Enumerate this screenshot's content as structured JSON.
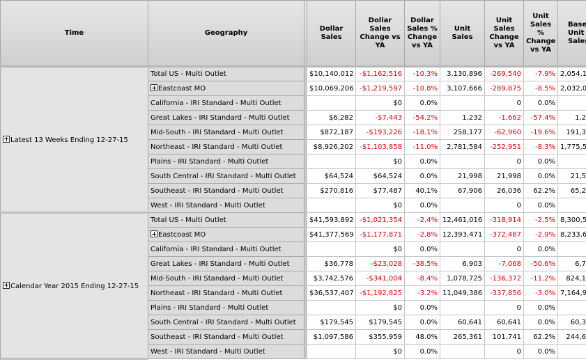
{
  "table": {
    "columns": [
      "Time",
      "Geography",
      "Dollar Sales",
      "Dollar Sales Change vs YA",
      "Dollar Sales % Change vs YA",
      "Unit Sales",
      "Unit Sales Change vs YA",
      "Unit Sales % Change vs YA",
      "Base Unit Sales"
    ],
    "groups": [
      {
        "time": "Latest 13 Weeks Ending 12-27-15",
        "expandable": true,
        "rows": [
          {
            "geography": "Total US - Multi Outlet",
            "expandable": false,
            "values": [
              "$10,140,012",
              "-$1,162,516",
              "-10.3%",
              "3,130,896",
              "-269,540",
              "-7.9%",
              "2,054,1"
            ]
          },
          {
            "geography": "Eastcoast MO",
            "expandable": true,
            "values": [
              "$10,069,206",
              "-$1,219,597",
              "-10.8%",
              "3,107,666",
              "-289,875",
              "-8.5%",
              "2,032,0"
            ]
          },
          {
            "geography": "California - IRI Standard - Multi Outlet",
            "expandable": false,
            "values": [
              null,
              "$0",
              "0.0%",
              null,
              "0",
              "0.0%",
              null
            ]
          },
          {
            "geography": "Great Lakes - IRI Standard - Multi Outlet",
            "expandable": false,
            "values": [
              "$6,282",
              "-$7,443",
              "-54.2%",
              "1,232",
              "-1,662",
              "-57.4%",
              "1,2"
            ]
          },
          {
            "geography": "Mid-South - IRI Standard - Multi Outlet",
            "expandable": false,
            "values": [
              "$872,187",
              "-$193,226",
              "-18.1%",
              "258,177",
              "-62,960",
              "-19.6%",
              "191,3"
            ]
          },
          {
            "geography": "Northeast - IRI Standard - Multi Outlet",
            "expandable": false,
            "values": [
              "$8,926,202",
              "-$1,103,858",
              "-11.0%",
              "2,781,584",
              "-252,951",
              "-8.3%",
              "1,775,5"
            ]
          },
          {
            "geography": "Plains - IRI Standard - Multi Outlet",
            "expandable": false,
            "values": [
              null,
              "$0",
              "0.0%",
              null,
              "0",
              "0.0%",
              null
            ]
          },
          {
            "geography": "South Central - IRI Standard - Multi Outlet",
            "expandable": false,
            "values": [
              "$64,524",
              "$64,524",
              "0.0%",
              "21,998",
              "21,998",
              "0.0%",
              "21,5"
            ]
          },
          {
            "geography": "Southeast - IRI Standard - Multi Outlet",
            "expandable": false,
            "values": [
              "$270,816",
              "$77,487",
              "40.1%",
              "67,906",
              "26,036",
              "62.2%",
              "65,2"
            ]
          },
          {
            "geography": "West - IRI Standard - Multi Outlet",
            "expandable": false,
            "values": [
              null,
              "$0",
              "0.0%",
              null,
              "0",
              "0.0%",
              null
            ]
          }
        ]
      },
      {
        "time": "Calendar Year 2015 Ending 12-27-15",
        "expandable": true,
        "rows": [
          {
            "geography": "Total US - Multi Outlet",
            "expandable": false,
            "values": [
              "$41,593,892",
              "-$1,021,354",
              "-2.4%",
              "12,461,016",
              "-318,914",
              "-2.5%",
              "8,300,5"
            ]
          },
          {
            "geography": "Eastcoast MO",
            "expandable": true,
            "values": [
              "$41,377,569",
              "-$1,177,871",
              "-2.8%",
              "12,393,471",
              "-372,487",
              "-2.9%",
              "8,233,6"
            ]
          },
          {
            "geography": "California - IRI Standard - Multi Outlet",
            "expandable": false,
            "values": [
              null,
              "$0",
              "0.0%",
              null,
              "0",
              "0.0%",
              null
            ]
          },
          {
            "geography": "Great Lakes - IRI Standard - Multi Outlet",
            "expandable": false,
            "values": [
              "$36,778",
              "-$23,028",
              "-38.5%",
              "6,903",
              "-7,068",
              "-50.6%",
              "6,7"
            ]
          },
          {
            "geography": "Mid-South - IRI Standard - Multi Outlet",
            "expandable": false,
            "values": [
              "$3,742,576",
              "-$341,004",
              "-8.4%",
              "1,078,725",
              "-136,372",
              "-11.2%",
              "824,1"
            ]
          },
          {
            "geography": "Northeast - IRI Standard - Multi Outlet",
            "expandable": false,
            "values": [
              "$36,537,407",
              "-$1,192,825",
              "-3.2%",
              "11,049,386",
              "-337,856",
              "-3.0%",
              "7,164,9"
            ]
          },
          {
            "geography": "Plains - IRI Standard - Multi Outlet",
            "expandable": false,
            "values": [
              null,
              "$0",
              "0.0%",
              null,
              "0",
              "0.0%",
              null
            ]
          },
          {
            "geography": "South Central - IRI Standard - Multi Outlet",
            "expandable": false,
            "values": [
              "$179,545",
              "$179,545",
              "0.0%",
              "60,641",
              "60,641",
              "0.0%",
              "60,3"
            ]
          },
          {
            "geography": "Southeast - IRI Standard - Multi Outlet",
            "expandable": false,
            "values": [
              "$1,097,586",
              "$355,959",
              "48.0%",
              "265,361",
              "101,741",
              "62.2%",
              "244,6"
            ]
          },
          {
            "geography": "West - IRI Standard - Multi Outlet",
            "expandable": false,
            "values": [
              null,
              "$0",
              "0.0%",
              null,
              "0",
              "0.0%",
              null
            ]
          }
        ]
      }
    ]
  }
}
